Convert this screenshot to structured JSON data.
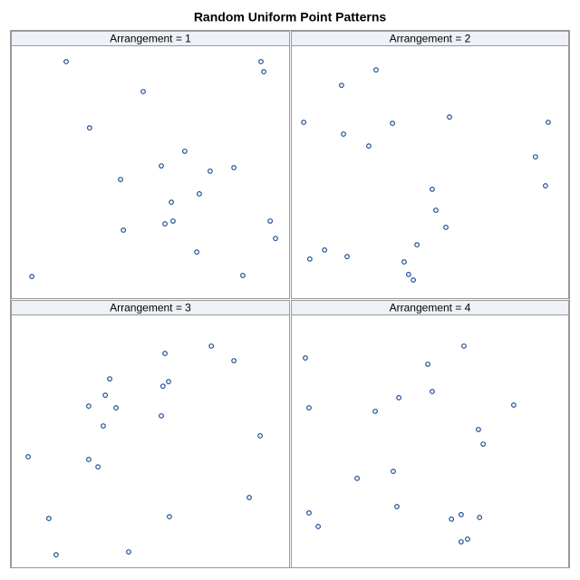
{
  "title": "Random Uniform Point Patterns",
  "chart_data": [
    {
      "type": "scatter",
      "title": "Arrangement = 1",
      "color": "#0b3f8f",
      "xlim": [
        0,
        1
      ],
      "ylim": [
        0,
        1
      ],
      "x": [
        0.198,
        0.896,
        0.906,
        0.474,
        0.282,
        0.623,
        0.539,
        0.714,
        0.799,
        0.393,
        0.675,
        0.575,
        0.581,
        0.552,
        0.929,
        0.403,
        0.948,
        0.666,
        0.075,
        0.831
      ],
      "y": [
        0.939,
        0.939,
        0.899,
        0.82,
        0.676,
        0.583,
        0.525,
        0.504,
        0.518,
        0.471,
        0.414,
        0.381,
        0.306,
        0.295,
        0.306,
        0.27,
        0.237,
        0.183,
        0.086,
        0.09
      ]
    },
    {
      "type": "scatter",
      "title": "Arrangement = 2",
      "color": "#0b3f8f",
      "xlim": [
        0,
        1
      ],
      "ylim": [
        0,
        1
      ],
      "x": [
        0.306,
        0.182,
        0.046,
        0.365,
        0.57,
        0.925,
        0.189,
        0.28,
        0.879,
        0.915,
        0.508,
        0.521,
        0.557,
        0.453,
        0.121,
        0.068,
        0.202,
        0.407,
        0.423,
        0.44
      ],
      "y": [
        0.906,
        0.845,
        0.698,
        0.694,
        0.719,
        0.698,
        0.651,
        0.604,
        0.561,
        0.446,
        0.432,
        0.349,
        0.281,
        0.212,
        0.191,
        0.155,
        0.165,
        0.144,
        0.094,
        0.072
      ]
    },
    {
      "type": "scatter",
      "title": "Arrangement = 3",
      "color": "#0b3f8f",
      "xlim": [
        0,
        1
      ],
      "ylim": [
        0,
        1
      ],
      "x": [
        0.718,
        0.552,
        0.799,
        0.354,
        0.565,
        0.545,
        0.338,
        0.279,
        0.377,
        0.539,
        0.331,
        0.893,
        0.062,
        0.279,
        0.312,
        0.854,
        0.136,
        0.568,
        0.422,
        0.162
      ],
      "y": [
        0.878,
        0.849,
        0.82,
        0.748,
        0.737,
        0.719,
        0.683,
        0.64,
        0.633,
        0.601,
        0.561,
        0.522,
        0.439,
        0.428,
        0.399,
        0.277,
        0.194,
        0.201,
        0.061,
        0.05
      ]
    },
    {
      "type": "scatter",
      "title": "Arrangement = 4",
      "color": "#0b3f8f",
      "xlim": [
        0,
        1
      ],
      "ylim": [
        0,
        1
      ],
      "x": [
        0.622,
        0.052,
        0.492,
        0.388,
        0.508,
        0.801,
        0.065,
        0.303,
        0.674,
        0.691,
        0.368,
        0.238,
        0.381,
        0.065,
        0.098,
        0.577,
        0.612,
        0.678,
        0.635,
        0.612
      ],
      "y": [
        0.878,
        0.831,
        0.806,
        0.673,
        0.698,
        0.644,
        0.633,
        0.619,
        0.547,
        0.489,
        0.381,
        0.353,
        0.241,
        0.216,
        0.162,
        0.191,
        0.209,
        0.198,
        0.112,
        0.101
      ]
    }
  ]
}
